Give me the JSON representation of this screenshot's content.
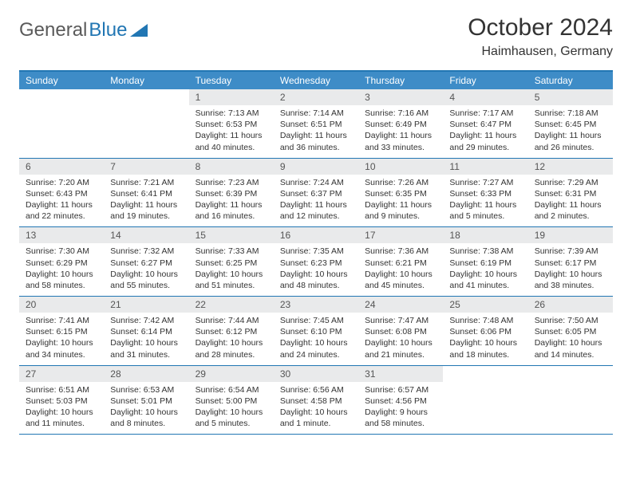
{
  "brand": {
    "part1": "General",
    "part2": "Blue"
  },
  "title": "October 2024",
  "location": "Haimhausen, Germany",
  "colors": {
    "header_bg": "#3e8cc7",
    "border": "#2176b3",
    "daynum_bg": "#e9eaeb",
    "text": "#333333",
    "brand_gray": "#5a5a5a",
    "brand_blue": "#2176b3"
  },
  "dayNames": [
    "Sunday",
    "Monday",
    "Tuesday",
    "Wednesday",
    "Thursday",
    "Friday",
    "Saturday"
  ],
  "weeks": [
    [
      {
        "n": "",
        "sr": "",
        "ss": "",
        "dl": ""
      },
      {
        "n": "",
        "sr": "",
        "ss": "",
        "dl": ""
      },
      {
        "n": "1",
        "sr": "Sunrise: 7:13 AM",
        "ss": "Sunset: 6:53 PM",
        "dl": "Daylight: 11 hours and 40 minutes."
      },
      {
        "n": "2",
        "sr": "Sunrise: 7:14 AM",
        "ss": "Sunset: 6:51 PM",
        "dl": "Daylight: 11 hours and 36 minutes."
      },
      {
        "n": "3",
        "sr": "Sunrise: 7:16 AM",
        "ss": "Sunset: 6:49 PM",
        "dl": "Daylight: 11 hours and 33 minutes."
      },
      {
        "n": "4",
        "sr": "Sunrise: 7:17 AM",
        "ss": "Sunset: 6:47 PM",
        "dl": "Daylight: 11 hours and 29 minutes."
      },
      {
        "n": "5",
        "sr": "Sunrise: 7:18 AM",
        "ss": "Sunset: 6:45 PM",
        "dl": "Daylight: 11 hours and 26 minutes."
      }
    ],
    [
      {
        "n": "6",
        "sr": "Sunrise: 7:20 AM",
        "ss": "Sunset: 6:43 PM",
        "dl": "Daylight: 11 hours and 22 minutes."
      },
      {
        "n": "7",
        "sr": "Sunrise: 7:21 AM",
        "ss": "Sunset: 6:41 PM",
        "dl": "Daylight: 11 hours and 19 minutes."
      },
      {
        "n": "8",
        "sr": "Sunrise: 7:23 AM",
        "ss": "Sunset: 6:39 PM",
        "dl": "Daylight: 11 hours and 16 minutes."
      },
      {
        "n": "9",
        "sr": "Sunrise: 7:24 AM",
        "ss": "Sunset: 6:37 PM",
        "dl": "Daylight: 11 hours and 12 minutes."
      },
      {
        "n": "10",
        "sr": "Sunrise: 7:26 AM",
        "ss": "Sunset: 6:35 PM",
        "dl": "Daylight: 11 hours and 9 minutes."
      },
      {
        "n": "11",
        "sr": "Sunrise: 7:27 AM",
        "ss": "Sunset: 6:33 PM",
        "dl": "Daylight: 11 hours and 5 minutes."
      },
      {
        "n": "12",
        "sr": "Sunrise: 7:29 AM",
        "ss": "Sunset: 6:31 PM",
        "dl": "Daylight: 11 hours and 2 minutes."
      }
    ],
    [
      {
        "n": "13",
        "sr": "Sunrise: 7:30 AM",
        "ss": "Sunset: 6:29 PM",
        "dl": "Daylight: 10 hours and 58 minutes."
      },
      {
        "n": "14",
        "sr": "Sunrise: 7:32 AM",
        "ss": "Sunset: 6:27 PM",
        "dl": "Daylight: 10 hours and 55 minutes."
      },
      {
        "n": "15",
        "sr": "Sunrise: 7:33 AM",
        "ss": "Sunset: 6:25 PM",
        "dl": "Daylight: 10 hours and 51 minutes."
      },
      {
        "n": "16",
        "sr": "Sunrise: 7:35 AM",
        "ss": "Sunset: 6:23 PM",
        "dl": "Daylight: 10 hours and 48 minutes."
      },
      {
        "n": "17",
        "sr": "Sunrise: 7:36 AM",
        "ss": "Sunset: 6:21 PM",
        "dl": "Daylight: 10 hours and 45 minutes."
      },
      {
        "n": "18",
        "sr": "Sunrise: 7:38 AM",
        "ss": "Sunset: 6:19 PM",
        "dl": "Daylight: 10 hours and 41 minutes."
      },
      {
        "n": "19",
        "sr": "Sunrise: 7:39 AM",
        "ss": "Sunset: 6:17 PM",
        "dl": "Daylight: 10 hours and 38 minutes."
      }
    ],
    [
      {
        "n": "20",
        "sr": "Sunrise: 7:41 AM",
        "ss": "Sunset: 6:15 PM",
        "dl": "Daylight: 10 hours and 34 minutes."
      },
      {
        "n": "21",
        "sr": "Sunrise: 7:42 AM",
        "ss": "Sunset: 6:14 PM",
        "dl": "Daylight: 10 hours and 31 minutes."
      },
      {
        "n": "22",
        "sr": "Sunrise: 7:44 AM",
        "ss": "Sunset: 6:12 PM",
        "dl": "Daylight: 10 hours and 28 minutes."
      },
      {
        "n": "23",
        "sr": "Sunrise: 7:45 AM",
        "ss": "Sunset: 6:10 PM",
        "dl": "Daylight: 10 hours and 24 minutes."
      },
      {
        "n": "24",
        "sr": "Sunrise: 7:47 AM",
        "ss": "Sunset: 6:08 PM",
        "dl": "Daylight: 10 hours and 21 minutes."
      },
      {
        "n": "25",
        "sr": "Sunrise: 7:48 AM",
        "ss": "Sunset: 6:06 PM",
        "dl": "Daylight: 10 hours and 18 minutes."
      },
      {
        "n": "26",
        "sr": "Sunrise: 7:50 AM",
        "ss": "Sunset: 6:05 PM",
        "dl": "Daylight: 10 hours and 14 minutes."
      }
    ],
    [
      {
        "n": "27",
        "sr": "Sunrise: 6:51 AM",
        "ss": "Sunset: 5:03 PM",
        "dl": "Daylight: 10 hours and 11 minutes."
      },
      {
        "n": "28",
        "sr": "Sunrise: 6:53 AM",
        "ss": "Sunset: 5:01 PM",
        "dl": "Daylight: 10 hours and 8 minutes."
      },
      {
        "n": "29",
        "sr": "Sunrise: 6:54 AM",
        "ss": "Sunset: 5:00 PM",
        "dl": "Daylight: 10 hours and 5 minutes."
      },
      {
        "n": "30",
        "sr": "Sunrise: 6:56 AM",
        "ss": "Sunset: 4:58 PM",
        "dl": "Daylight: 10 hours and 1 minute."
      },
      {
        "n": "31",
        "sr": "Sunrise: 6:57 AM",
        "ss": "Sunset: 4:56 PM",
        "dl": "Daylight: 9 hours and 58 minutes."
      },
      {
        "n": "",
        "sr": "",
        "ss": "",
        "dl": ""
      },
      {
        "n": "",
        "sr": "",
        "ss": "",
        "dl": ""
      }
    ]
  ]
}
